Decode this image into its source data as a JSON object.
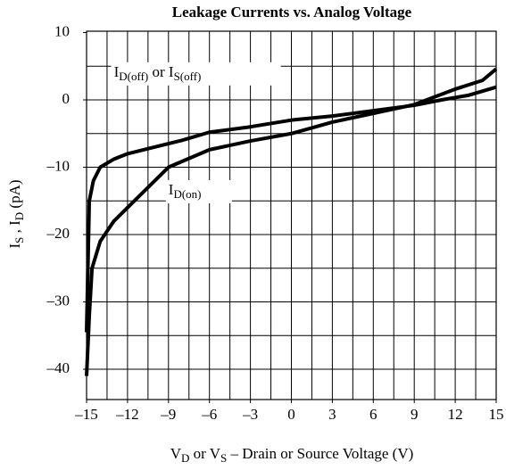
{
  "chart_data": {
    "type": "line",
    "title": "Leakage Currents vs. Analog Voltage",
    "x_label": [
      "V",
      "D",
      " or V",
      "S",
      " – Drain or Source Voltage (V)"
    ],
    "y_label": [
      "I",
      "S",
      " , I",
      "D",
      " (pA)"
    ],
    "xlim": [
      -15,
      15
    ],
    "ylim": [
      -44.5,
      10.2
    ],
    "xticks": [
      -15,
      -12,
      -9,
      -6,
      -3,
      0,
      3,
      6,
      9,
      12,
      15
    ],
    "yticks": [
      -40,
      -30,
      -20,
      -10,
      0,
      10
    ],
    "xgrid": [
      -13.5,
      -12,
      -10.5,
      -9,
      -7.5,
      -6,
      -4.5,
      -3,
      -1.5,
      0,
      1.5,
      3,
      4.5,
      6,
      7.5,
      9,
      10.5,
      12,
      13.5
    ],
    "ygrid": [
      -40,
      -35,
      -30,
      -25,
      -20,
      -15,
      -10,
      -5,
      0,
      5
    ],
    "grid": true,
    "series": [
      {
        "name": [
          "I",
          "D(off)",
          " or I",
          "S(off)"
        ],
        "color": "#000000",
        "x": [
          -15,
          -14.8,
          -14.5,
          -14,
          -13,
          -12,
          -10,
          -8,
          -6,
          -3,
          0,
          3,
          6,
          9,
          11,
          13,
          15
        ],
        "values": [
          -34.5,
          -15,
          -12,
          -10,
          -8.8,
          -8,
          -7,
          -6,
          -4.8,
          -4,
          -3,
          -2.4,
          -1.6,
          -0.8,
          0,
          0.7,
          1.9
        ]
      },
      {
        "name": [
          "I",
          "D(on)"
        ],
        "color": "#000000",
        "x": [
          -15,
          -14.8,
          -14.6,
          -14,
          -13,
          -12,
          -11,
          -9,
          -6,
          -3,
          0,
          3,
          6,
          9,
          12,
          14,
          15
        ],
        "values": [
          -41,
          -32,
          -25,
          -21,
          -18,
          -16,
          -14,
          -10,
          -7.4,
          -6.1,
          -5,
          -3.3,
          -2,
          -0.7,
          1.6,
          2.9,
          4.6
        ]
      }
    ]
  }
}
